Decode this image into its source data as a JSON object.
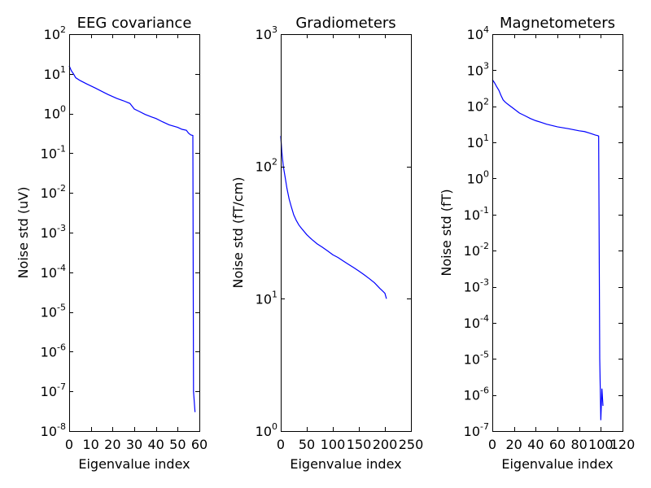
{
  "chart_data": [
    {
      "type": "line",
      "title": "EEG covariance",
      "xlabel": "Eigenvalue index",
      "ylabel": "Noise std (uV)",
      "yscale": "log",
      "xlim": [
        0,
        60
      ],
      "ylim_exp": [
        -8,
        2
      ],
      "xticks": [
        0,
        10,
        20,
        30,
        40,
        50,
        60
      ],
      "yticks_exp": [
        -8,
        -7,
        -6,
        -5,
        -4,
        -3,
        -2,
        -1,
        0,
        1,
        2
      ],
      "color": "#0000ff",
      "x": [
        0,
        1,
        2,
        3,
        5,
        8,
        12,
        18,
        22,
        25,
        28,
        30,
        32,
        35,
        38,
        40,
        43,
        46,
        50,
        52,
        54,
        55,
        56,
        57,
        57.3,
        58
      ],
      "y": [
        16,
        12,
        10,
        8,
        6.8,
        5.6,
        4.4,
        3.0,
        2.4,
        2.1,
        1.8,
        1.3,
        1.15,
        0.95,
        0.82,
        0.75,
        0.62,
        0.52,
        0.45,
        0.4,
        0.38,
        0.32,
        0.29,
        0.28,
        1e-07,
        3e-08
      ]
    },
    {
      "type": "line",
      "title": "Gradiometers",
      "xlabel": "Eigenvalue index",
      "ylabel": "Noise std (fT/cm)",
      "yscale": "log",
      "xlim": [
        0,
        250
      ],
      "ylim_exp": [
        0,
        3
      ],
      "xticks": [
        0,
        50,
        100,
        150,
        200,
        250
      ],
      "yticks_exp": [
        0,
        1,
        2,
        3
      ],
      "color": "#0000ff",
      "x": [
        0,
        2,
        5,
        8,
        12,
        16,
        20,
        25,
        30,
        35,
        40,
        50,
        60,
        70,
        80,
        90,
        100,
        110,
        120,
        130,
        140,
        150,
        160,
        170,
        180,
        190,
        195,
        200,
        203
      ],
      "y": [
        170,
        130,
        100,
        85,
        68,
        57,
        50,
        43,
        39,
        36,
        34,
        30.5,
        28,
        26,
        24.5,
        23,
        21.5,
        20.5,
        19.3,
        18.2,
        17.2,
        16.2,
        15.2,
        14.2,
        13.2,
        12.0,
        11.5,
        11.0,
        10.0
      ]
    },
    {
      "type": "line",
      "title": "Magnetometers",
      "xlabel": "Eigenvalue index",
      "ylabel": "Noise std (fT)",
      "yscale": "log",
      "xlim": [
        0,
        120
      ],
      "ylim_exp": [
        -7,
        4
      ],
      "xticks": [
        0,
        20,
        40,
        60,
        80,
        100,
        120
      ],
      "yticks_exp": [
        -7,
        -6,
        -5,
        -4,
        -3,
        -2,
        -1,
        0,
        1,
        2,
        3,
        4
      ],
      "color": "#0000ff",
      "x": [
        0,
        2,
        4,
        6,
        8,
        10,
        12,
        15,
        20,
        25,
        30,
        35,
        40,
        45,
        50,
        60,
        70,
        80,
        85,
        90,
        95,
        97,
        98,
        99,
        100,
        101,
        102
      ],
      "y": [
        550,
        450,
        350,
        280,
        200,
        150,
        130,
        110,
        85,
        65,
        55,
        46,
        40,
        36,
        32,
        27,
        24,
        21,
        20,
        18,
        16,
        15.5,
        15,
        1e-05,
        2e-07,
        1.5e-06,
        5e-07
      ]
    }
  ]
}
